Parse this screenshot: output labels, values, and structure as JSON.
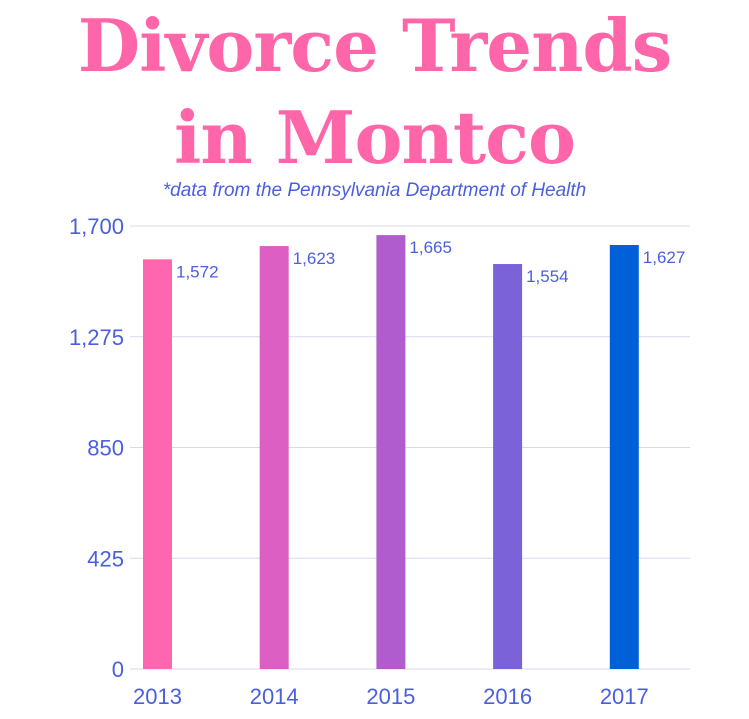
{
  "header": {
    "title_line1": "Divorce Trends",
    "title_line2": "in Montco",
    "subtitle": "*data from the Pennsylvania Department of Health"
  },
  "colors": {
    "title": "#ff66aa",
    "text": "#4a5fe0",
    "grid": "#d8d8f0",
    "bars": [
      "#ff66b0",
      "#dc60c4",
      "#b05ccf",
      "#7b62d9",
      "#0060d8"
    ]
  },
  "chart_data": {
    "type": "bar",
    "title": "Divorce Trends in Montco",
    "subtitle": "*data from the Pennsylvania Department of Health",
    "categories": [
      "2013",
      "2014",
      "2015",
      "2016",
      "2017"
    ],
    "values": [
      1572,
      1623,
      1665,
      1554,
      1627
    ],
    "value_labels": [
      "1,572",
      "1,623",
      "1,665",
      "1,554",
      "1,627"
    ],
    "y_ticks": [
      0,
      425,
      850,
      1275,
      1700
    ],
    "y_tick_labels": [
      "0",
      "425",
      "850",
      "1,275",
      "1,700"
    ],
    "ylim": [
      0,
      1700
    ],
    "xlabel": "",
    "ylabel": "",
    "grid": true,
    "legend": "none"
  }
}
